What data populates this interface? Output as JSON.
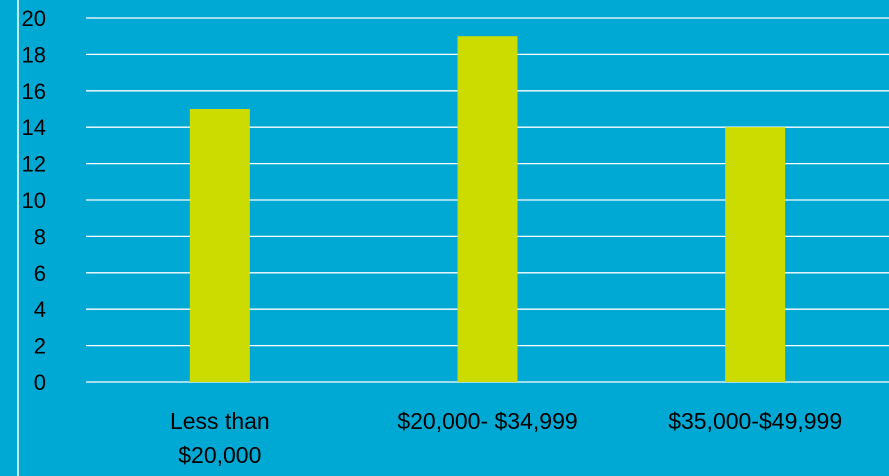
{
  "colors": {
    "background": "#00a9d4",
    "bar": "#cddc00",
    "grid": "#ffffff",
    "text": "#000000"
  },
  "chart_data": {
    "type": "bar",
    "title": "",
    "xlabel": "",
    "ylabel": "",
    "categories": [
      [
        "Less than",
        "$20,000"
      ],
      [
        "$20,000- $34,999"
      ],
      [
        "$35,000-$49,999"
      ]
    ],
    "values": [
      15,
      19,
      14
    ],
    "ylim": [
      0,
      20
    ],
    "yticks": [
      "0",
      "2",
      "4",
      "6",
      "8",
      "10",
      "12",
      "14",
      "16",
      "18",
      "20"
    ],
    "grid": true,
    "legend": "none"
  }
}
